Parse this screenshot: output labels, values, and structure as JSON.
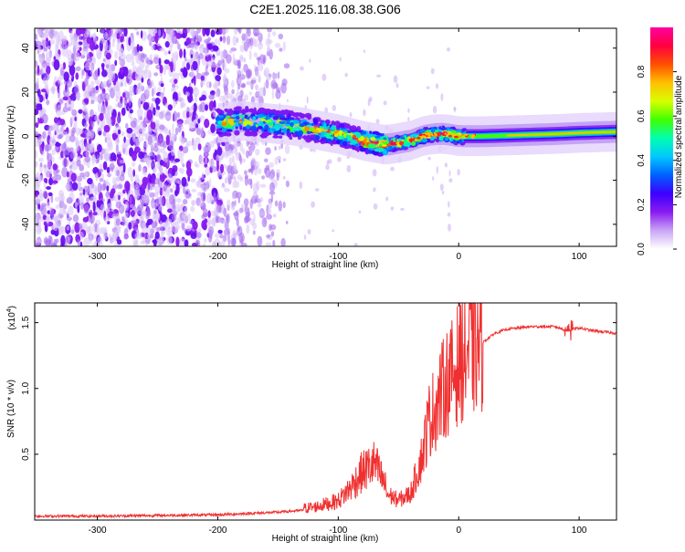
{
  "title": "C2E1.2025.116.08.38.G06",
  "chart_data": [
    {
      "type": "heatmap",
      "xlabel": "Height of straight line (km)",
      "ylabel": "Frequency (Hz)",
      "xlim": [
        -352,
        131
      ],
      "ylim": [
        -50,
        49
      ],
      "x_ticks": [
        -300,
        -200,
        -100,
        0,
        100
      ],
      "y_ticks": [
        -40,
        -20,
        0,
        20,
        40
      ],
      "colorbar": {
        "label": "Normalized spectral amplitude",
        "range": [
          0,
          1
        ],
        "ticks": [
          "0.0",
          "0.2",
          "0.4",
          "0.6",
          "0.8"
        ],
        "colors": [
          "#ffffff",
          "#c9a6f5",
          "#8a1cf0",
          "#3c00ff",
          "#0060ff",
          "#00c8ff",
          "#00ffb0",
          "#40ff00",
          "#d8ff00",
          "#ffc000",
          "#ff5000",
          "#ff0040",
          "#ff00a0"
        ]
      },
      "ridge": {
        "x": [
          -200,
          -180,
          -160,
          -140,
          -120,
          -100,
          -80,
          -60,
          -50,
          -40,
          -30,
          -20,
          -10,
          0,
          20,
          50,
          80,
          100,
          131
        ],
        "y": [
          6,
          7,
          6,
          5,
          3,
          1,
          -2,
          -4,
          -3,
          -2,
          0,
          1,
          1,
          0,
          0,
          0.5,
          1,
          1.5,
          2
        ]
      }
    },
    {
      "type": "line",
      "xlabel": "Height of straight line (km)",
      "ylabel": "SNR (10 * v/v)",
      "scale_label": "(x10",
      "scale_exp": "4",
      "xlim": [
        -352,
        131
      ],
      "ylim": [
        0,
        1.65
      ],
      "x_ticks": [
        -300,
        -200,
        -100,
        0,
        100
      ],
      "y_ticks": [
        "0.5",
        "1.0",
        "1.5"
      ],
      "line_color": "#f03030",
      "series": [
        {
          "x": [
            -352,
            -300,
            -250,
            -200,
            -150,
            -120,
            -100,
            -90,
            -80,
            -70,
            -60,
            -50,
            -40,
            -30,
            -25,
            -20,
            -15,
            -10,
            -5,
            0,
            5,
            10,
            15,
            20,
            30,
            40,
            60,
            80,
            90,
            100,
            110,
            120,
            131
          ],
          "y": [
            0.03,
            0.03,
            0.035,
            0.04,
            0.06,
            0.08,
            0.12,
            0.2,
            0.3,
            0.35,
            0.2,
            0.15,
            0.2,
            0.5,
            0.75,
            0.85,
            0.95,
            1.05,
            1.1,
            1.2,
            1.25,
            1.3,
            1.32,
            1.35,
            1.42,
            1.45,
            1.47,
            1.47,
            1.44,
            1.46,
            1.44,
            1.43,
            1.42
          ]
        }
      ]
    }
  ]
}
